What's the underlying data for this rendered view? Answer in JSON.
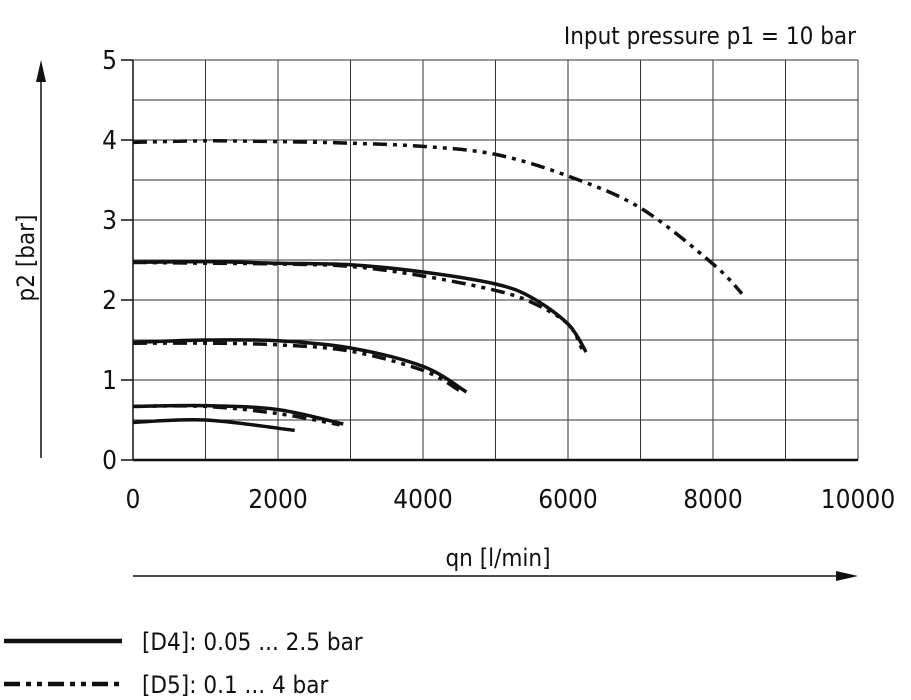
{
  "chart_data": {
    "type": "line",
    "annotation": "Input pressure p1 = 10 bar",
    "xlabel": "qn [l/min]",
    "ylabel": "p2 [bar]",
    "xlim": [
      0,
      10000
    ],
    "ylim": [
      0,
      5
    ],
    "xticks": [
      0,
      2000,
      4000,
      6000,
      8000,
      10000
    ],
    "xtick_labels": [
      "0",
      "2000",
      "4000",
      "6000",
      "8000",
      "10000"
    ],
    "yticks": [
      0,
      1,
      2,
      3,
      4,
      5
    ],
    "ytick_labels": [
      "0",
      "1",
      "2",
      "3",
      "4",
      "5"
    ],
    "grid": true,
    "legend_placement": "bottom-left",
    "series": [
      {
        "name": "[D4]: 0.05 ... 2.5 bar",
        "style": "solid",
        "curves": [
          [
            [
              0,
              2.47
            ],
            [
              1000,
              2.48
            ],
            [
              2000,
              2.46
            ],
            [
              3000,
              2.44
            ],
            [
              4000,
              2.35
            ],
            [
              5000,
              2.2
            ],
            [
              5500,
              2.03
            ],
            [
              6000,
              1.7
            ],
            [
              6250,
              1.35
            ]
          ],
          [
            [
              0,
              1.47
            ],
            [
              1000,
              1.5
            ],
            [
              2000,
              1.49
            ],
            [
              3000,
              1.4
            ],
            [
              4000,
              1.17
            ],
            [
              4600,
              0.85
            ]
          ],
          [
            [
              0,
              0.67
            ],
            [
              1000,
              0.68
            ],
            [
              2000,
              0.63
            ],
            [
              2900,
              0.45
            ]
          ],
          [
            [
              0,
              0.47
            ],
            [
              1000,
              0.5
            ],
            [
              2230,
              0.37
            ]
          ]
        ]
      },
      {
        "name": "[D5]: 0.1 ... 4 bar",
        "style": "dash-dot-dot",
        "curves": [
          [
            [
              0,
              3.97
            ],
            [
              1000,
              3.99
            ],
            [
              2000,
              3.98
            ],
            [
              3000,
              3.96
            ],
            [
              4000,
              3.92
            ],
            [
              5000,
              3.82
            ],
            [
              6000,
              3.55
            ],
            [
              7000,
              3.15
            ],
            [
              8000,
              2.45
            ],
            [
              8400,
              2.08
            ]
          ],
          [
            [
              0,
              2.47
            ],
            [
              1000,
              2.46
            ],
            [
              2000,
              2.45
            ],
            [
              3000,
              2.42
            ],
            [
              4000,
              2.3
            ],
            [
              5000,
              2.12
            ],
            [
              5500,
              1.97
            ],
            [
              6000,
              1.7
            ],
            [
              6200,
              1.37
            ]
          ],
          [
            [
              0,
              1.46
            ],
            [
              1000,
              1.46
            ],
            [
              2000,
              1.44
            ],
            [
              3000,
              1.36
            ],
            [
              4000,
              1.12
            ],
            [
              4500,
              0.87
            ]
          ],
          [
            [
              0,
              0.67
            ],
            [
              1000,
              0.67
            ],
            [
              2000,
              0.58
            ],
            [
              2850,
              0.44
            ]
          ]
        ]
      }
    ]
  }
}
